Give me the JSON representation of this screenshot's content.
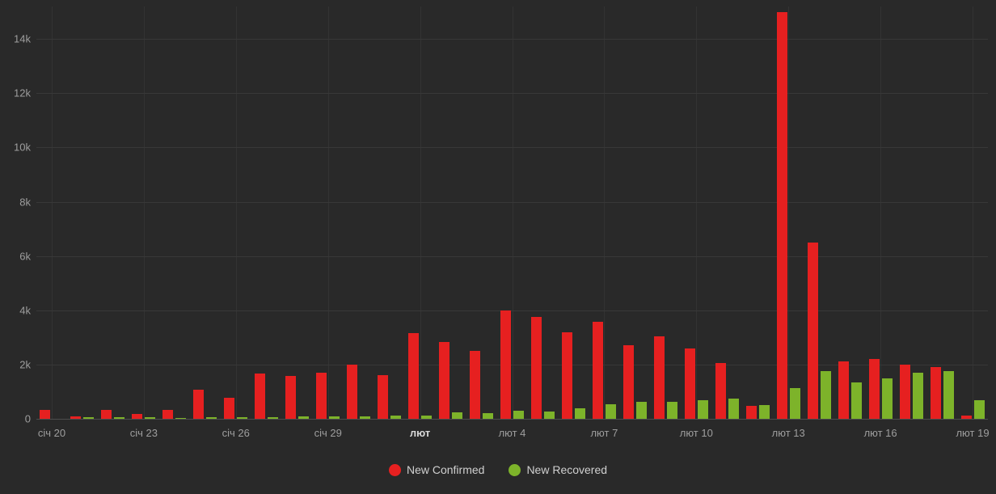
{
  "chart_data": {
    "type": "bar",
    "title": "",
    "x": [
      "січ 20",
      "січ 21",
      "січ 22",
      "січ 23",
      "січ 24",
      "січ 25",
      "січ 26",
      "січ 27",
      "січ 28",
      "січ 29",
      "січ 30",
      "січ 31",
      "лют 1",
      "лют 2",
      "лют 3",
      "лют 4",
      "лют 5",
      "лют 6",
      "лют 7",
      "лют 8",
      "лют 9",
      "лют 10",
      "лют 11",
      "лют 12",
      "лют 13",
      "лют 14",
      "лют 15",
      "лют 16",
      "лют 17",
      "лют 18",
      "лют 19"
    ],
    "x_tick_indices": [
      0,
      3,
      6,
      9,
      12,
      15,
      18,
      21,
      24,
      27,
      30
    ],
    "x_tick_labels": [
      "січ 20",
      "січ 23",
      "січ 26",
      "січ 29",
      "лют",
      "лют 4",
      "лют 7",
      "лют 10",
      "лют 13",
      "лют 16",
      "лют 19"
    ],
    "series": [
      {
        "name": "New Confirmed",
        "color": "#e62020",
        "values": [
          330,
          90,
          330,
          180,
          330,
          1070,
          780,
          1670,
          1580,
          1700,
          2000,
          1610,
          3160,
          2830,
          2500,
          4000,
          3760,
          3190,
          3580,
          2710,
          3040,
          2600,
          2060,
          480,
          15000,
          6500,
          2120,
          2210,
          2000,
          1910,
          120
        ]
      },
      {
        "name": "New Recovered",
        "color": "#7db32a",
        "values": [
          0,
          60,
          60,
          60,
          30,
          60,
          60,
          60,
          75,
          90,
          75,
          105,
          120,
          240,
          210,
          300,
          270,
          390,
          540,
          630,
          630,
          690,
          750,
          510,
          1130,
          1760,
          1340,
          1490,
          1700,
          1760,
          690
        ]
      }
    ],
    "ylim": [
      0,
      15200
    ],
    "yticks": [
      0,
      2000,
      4000,
      6000,
      8000,
      10000,
      12000,
      14000
    ],
    "ytick_labels": [
      "0",
      "2k",
      "4k",
      "6k",
      "8k",
      "10k",
      "12k",
      "14k"
    ],
    "grid": true,
    "legend_position": "bottom"
  },
  "colors": {
    "background": "#292929",
    "grid_h": "#383838",
    "grid_v": "#333333",
    "axis_text": "#9e9e9e",
    "confirmed": "#e62020",
    "recovered": "#7db32a"
  }
}
